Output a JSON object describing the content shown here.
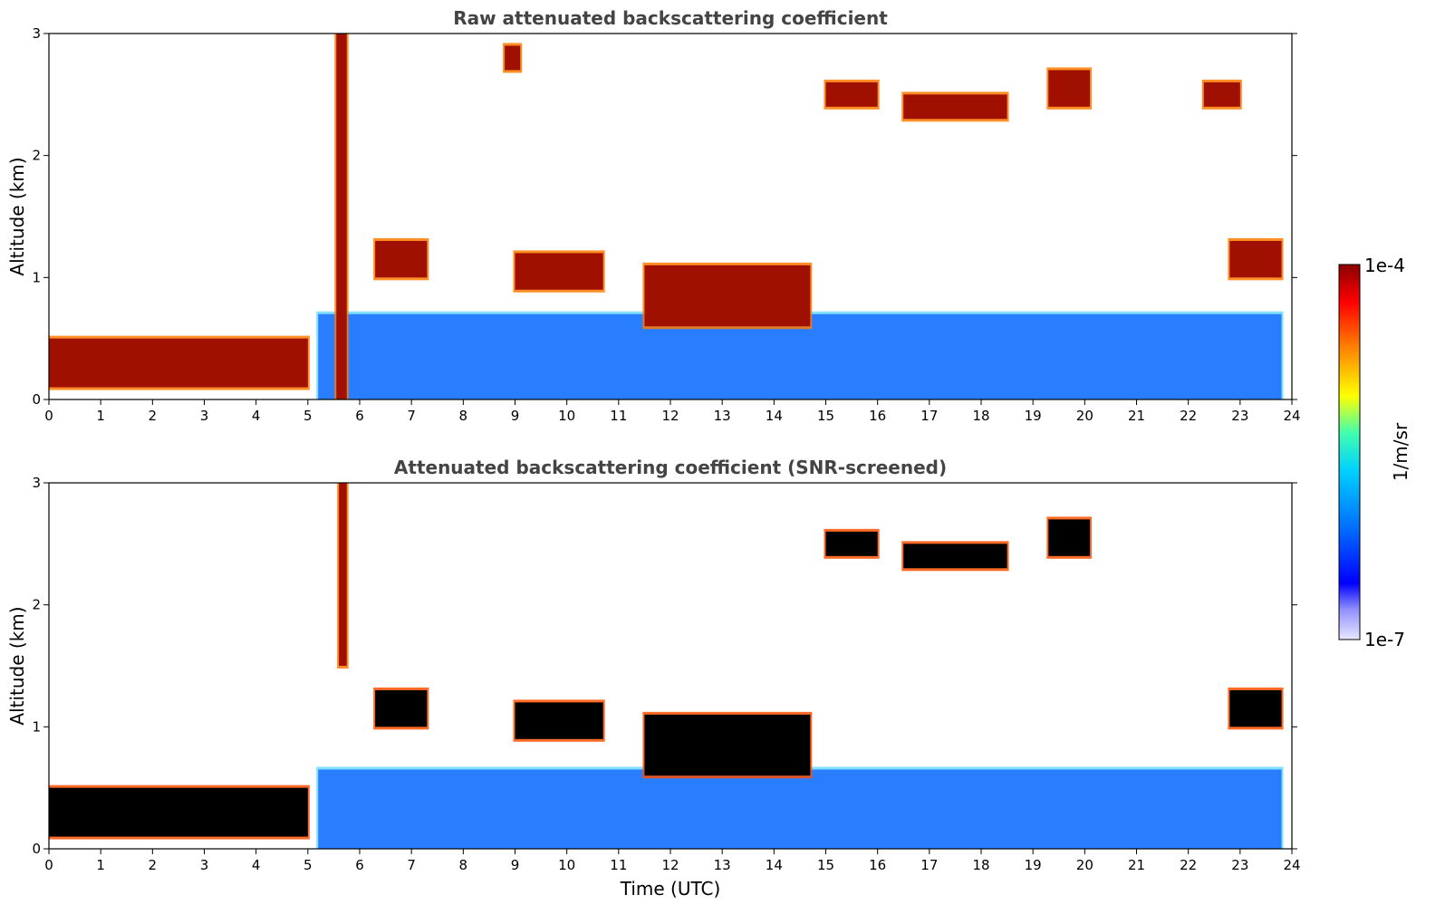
{
  "chart_data": [
    {
      "type": "heatmap",
      "title": "Raw attenuated backscattering coefficient",
      "xlabel": "",
      "ylabel": "Altitude (km)",
      "xlim": [
        0,
        24
      ],
      "ylim": [
        0,
        3
      ],
      "x_ticks": [
        "0",
        "1",
        "2",
        "3",
        "4",
        "5",
        "6",
        "7",
        "8",
        "9",
        "10",
        "11",
        "12",
        "13",
        "14",
        "15",
        "16",
        "17",
        "18",
        "19",
        "20",
        "21",
        "22",
        "23",
        "24"
      ],
      "y_ticks": [
        "0",
        "1",
        "2",
        "3"
      ],
      "features": [
        {
          "kind": "boundary_layer_aerosol",
          "time_utc": [
            0,
            5
          ],
          "altitude_km": [
            0.1,
            0.5
          ],
          "level": "high"
        },
        {
          "kind": "precipitation_streak",
          "time_utc": [
            5.55,
            5.75
          ],
          "altitude_km": [
            0,
            3.0
          ],
          "level": "high"
        },
        {
          "kind": "cloud",
          "time_utc": [
            6.3,
            7.3
          ],
          "altitude_km": [
            1.0,
            1.3
          ],
          "level": "high"
        },
        {
          "kind": "cloud",
          "time_utc": [
            8.8,
            9.1
          ],
          "altitude_km": [
            2.7,
            2.9
          ],
          "level": "high"
        },
        {
          "kind": "cloud",
          "time_utc": [
            9.0,
            10.7
          ],
          "altitude_km": [
            0.9,
            1.2
          ],
          "level": "high"
        },
        {
          "kind": "cloud",
          "time_utc": [
            11.5,
            14.7
          ],
          "altitude_km": [
            0.6,
            1.1
          ],
          "level": "high"
        },
        {
          "kind": "cloud",
          "time_utc": [
            15.0,
            16.0
          ],
          "altitude_km": [
            2.4,
            2.6
          ],
          "level": "high"
        },
        {
          "kind": "cloud",
          "time_utc": [
            16.5,
            18.5
          ],
          "altitude_km": [
            2.3,
            2.5
          ],
          "level": "high"
        },
        {
          "kind": "cloud",
          "time_utc": [
            19.3,
            20.1
          ],
          "altitude_km": [
            2.4,
            2.7
          ],
          "level": "high"
        },
        {
          "kind": "cloud",
          "time_utc": [
            22.3,
            23.0
          ],
          "altitude_km": [
            2.4,
            2.6
          ],
          "level": "high"
        },
        {
          "kind": "cloud",
          "time_utc": [
            22.8,
            23.8
          ],
          "altitude_km": [
            1.0,
            1.3
          ],
          "level": "high"
        },
        {
          "kind": "aerosol_layer",
          "time_utc": [
            5.2,
            23.8
          ],
          "altitude_km": [
            0,
            0.7
          ],
          "level": "low"
        }
      ]
    },
    {
      "type": "heatmap",
      "title": "Attenuated backscattering coefficient (SNR-screened)",
      "xlabel": "Time (UTC)",
      "ylabel": "Altitude (km)",
      "xlim": [
        0,
        24
      ],
      "ylim": [
        0,
        3
      ],
      "x_ticks": [
        "0",
        "1",
        "2",
        "3",
        "4",
        "5",
        "6",
        "7",
        "8",
        "9",
        "10",
        "11",
        "12",
        "13",
        "14",
        "15",
        "16",
        "17",
        "18",
        "19",
        "20",
        "21",
        "22",
        "23",
        "24"
      ],
      "y_ticks": [
        "0",
        "1",
        "2",
        "3"
      ],
      "features": [
        {
          "kind": "boundary_layer_aerosol",
          "time_utc": [
            0,
            5
          ],
          "altitude_km": [
            0.1,
            0.5
          ],
          "level": "saturated"
        },
        {
          "kind": "precipitation_streak",
          "time_utc": [
            5.6,
            5.75
          ],
          "altitude_km": [
            1.5,
            3.0
          ],
          "level": "high"
        },
        {
          "kind": "cloud",
          "time_utc": [
            6.3,
            7.3
          ],
          "altitude_km": [
            1.0,
            1.3
          ],
          "level": "saturated"
        },
        {
          "kind": "cloud",
          "time_utc": [
            9.0,
            10.7
          ],
          "altitude_km": [
            0.9,
            1.2
          ],
          "level": "saturated"
        },
        {
          "kind": "cloud",
          "time_utc": [
            11.5,
            14.7
          ],
          "altitude_km": [
            0.6,
            1.1
          ],
          "level": "saturated"
        },
        {
          "kind": "cloud",
          "time_utc": [
            15.0,
            16.0
          ],
          "altitude_km": [
            2.4,
            2.6
          ],
          "level": "saturated"
        },
        {
          "kind": "cloud",
          "time_utc": [
            16.5,
            18.5
          ],
          "altitude_km": [
            2.3,
            2.5
          ],
          "level": "saturated"
        },
        {
          "kind": "cloud",
          "time_utc": [
            19.3,
            20.1
          ],
          "altitude_km": [
            2.4,
            2.7
          ],
          "level": "saturated"
        },
        {
          "kind": "cloud",
          "time_utc": [
            22.8,
            23.8
          ],
          "altitude_km": [
            1.0,
            1.3
          ],
          "level": "saturated"
        },
        {
          "kind": "aerosol_layer",
          "time_utc": [
            5.2,
            23.8
          ],
          "altitude_km": [
            0,
            0.65
          ],
          "level": "low"
        }
      ]
    }
  ],
  "colorbar": {
    "label": "1/m/sr",
    "max_label": "1e-4",
    "min_label": "1e-7",
    "scale": "log",
    "colormap": [
      "#ffffff",
      "#c8c8ff",
      "#0000ff",
      "#0060ff",
      "#00c8ff",
      "#40ffb0",
      "#ffff00",
      "#ff8000",
      "#ff0000",
      "#8b0000"
    ]
  },
  "colors": {
    "title": "#444444",
    "saturated": "#000000"
  }
}
